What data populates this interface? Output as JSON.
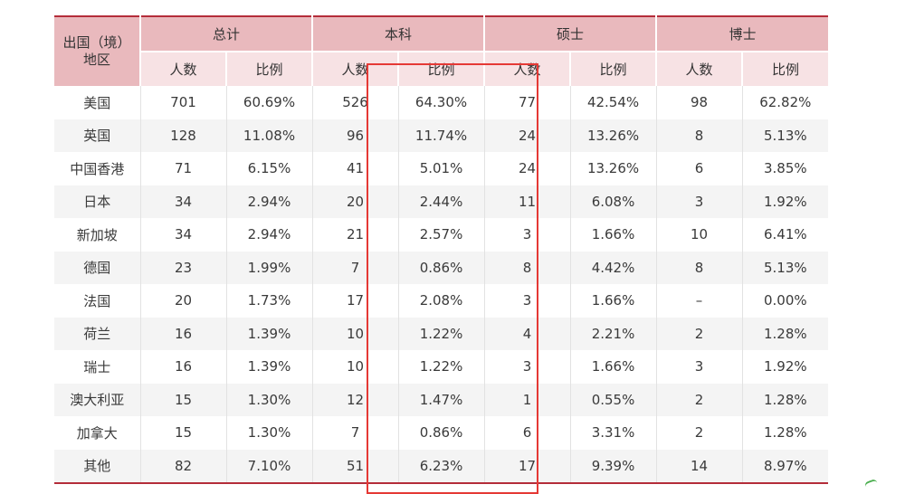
{
  "table": {
    "corner_header": [
      "出国（境）",
      "地区"
    ],
    "groups": [
      "总计",
      "本科",
      "硕士",
      "博士"
    ],
    "sub_headers": [
      "人数",
      "比例"
    ],
    "rows": [
      {
        "region": "美国",
        "cells": [
          "701",
          "60.69%",
          "526",
          "64.30%",
          "77",
          "42.54%",
          "98",
          "62.82%"
        ]
      },
      {
        "region": "英国",
        "cells": [
          "128",
          "11.08%",
          "96",
          "11.74%",
          "24",
          "13.26%",
          "8",
          "5.13%"
        ]
      },
      {
        "region": "中国香港",
        "cells": [
          "71",
          "6.15%",
          "41",
          "5.01%",
          "24",
          "13.26%",
          "6",
          "3.85%"
        ]
      },
      {
        "region": "日本",
        "cells": [
          "34",
          "2.94%",
          "20",
          "2.44%",
          "11",
          "6.08%",
          "3",
          "1.92%"
        ]
      },
      {
        "region": "新加坡",
        "cells": [
          "34",
          "2.94%",
          "21",
          "2.57%",
          "3",
          "1.66%",
          "10",
          "6.41%"
        ]
      },
      {
        "region": "德国",
        "cells": [
          "23",
          "1.99%",
          "7",
          "0.86%",
          "8",
          "4.42%",
          "8",
          "5.13%"
        ]
      },
      {
        "region": "法国",
        "cells": [
          "20",
          "1.73%",
          "17",
          "2.08%",
          "3",
          "1.66%",
          "–",
          "0.00%"
        ]
      },
      {
        "region": "荷兰",
        "cells": [
          "16",
          "1.39%",
          "10",
          "1.22%",
          "4",
          "2.21%",
          "2",
          "1.28%"
        ]
      },
      {
        "region": "瑞士",
        "cells": [
          "16",
          "1.39%",
          "10",
          "1.22%",
          "3",
          "1.66%",
          "3",
          "1.92%"
        ]
      },
      {
        "region": "澳大利亚",
        "cells": [
          "15",
          "1.30%",
          "12",
          "1.47%",
          "1",
          "0.55%",
          "2",
          "1.28%"
        ]
      },
      {
        "region": "加拿大",
        "cells": [
          "15",
          "1.30%",
          "7",
          "0.86%",
          "6",
          "3.31%",
          "2",
          "1.28%"
        ]
      },
      {
        "region": "其他",
        "cells": [
          "82",
          "7.10%",
          "51",
          "6.23%",
          "17",
          "9.39%",
          "14",
          "8.97%"
        ]
      }
    ],
    "highlighted_group": "本科",
    "colors": {
      "rule": "#b42d3a",
      "header": "#e9b9bd",
      "subheader": "#f7e2e4",
      "highlight": "#e53935"
    }
  }
}
